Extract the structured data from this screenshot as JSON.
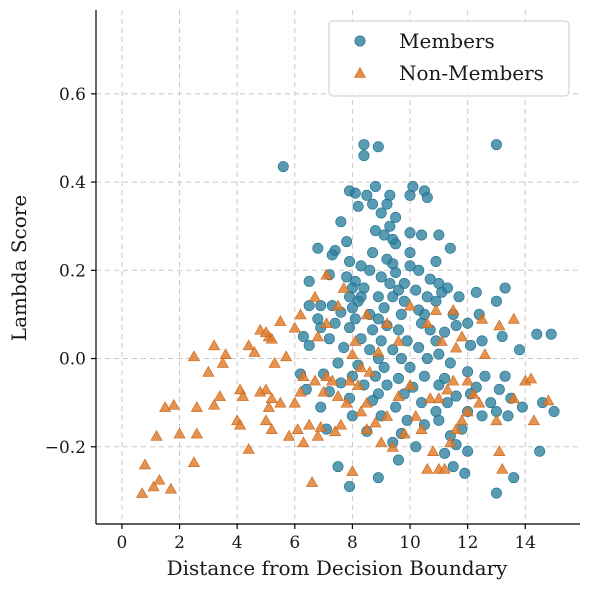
{
  "chart_data": {
    "type": "scatter",
    "xlabel": "Distance from Decision Boundary",
    "ylabel": "Lambda Score",
    "xlim": [
      -0.9,
      15.9
    ],
    "ylim": [
      -0.375,
      0.79
    ],
    "xticks": [
      0,
      2,
      4,
      6,
      8,
      10,
      12,
      14
    ],
    "yticks": [
      -0.2,
      0.0,
      0.2,
      0.4,
      0.6
    ],
    "ytick_labels": [
      "−0.2",
      "0.0",
      "0.2",
      "0.4",
      "0.6"
    ],
    "grid": true,
    "legend_position": "top-right",
    "series": [
      {
        "name": "Members",
        "color": "#2a7f9e",
        "marker": "circle",
        "points": [
          [
            5.6,
            0.435
          ],
          [
            8.4,
            0.485
          ],
          [
            8.9,
            0.48
          ],
          [
            13.0,
            0.485
          ],
          [
            8.4,
            0.46
          ],
          [
            8.8,
            0.39
          ],
          [
            10.1,
            0.39
          ],
          [
            10.5,
            0.38
          ],
          [
            7.9,
            0.38
          ],
          [
            8.1,
            0.375
          ],
          [
            8.5,
            0.37
          ],
          [
            9.3,
            0.37
          ],
          [
            10.0,
            0.37
          ],
          [
            10.6,
            0.365
          ],
          [
            8.7,
            0.35
          ],
          [
            9.2,
            0.35
          ],
          [
            8.2,
            0.345
          ],
          [
            9.0,
            0.33
          ],
          [
            9.5,
            0.32
          ],
          [
            7.6,
            0.31
          ],
          [
            9.3,
            0.3
          ],
          [
            8.8,
            0.29
          ],
          [
            10.0,
            0.285
          ],
          [
            9.1,
            0.28
          ],
          [
            10.4,
            0.28
          ],
          [
            9.4,
            0.27
          ],
          [
            11.0,
            0.28
          ],
          [
            7.8,
            0.265
          ],
          [
            9.5,
            0.26
          ],
          [
            6.8,
            0.25
          ],
          [
            7.4,
            0.245
          ],
          [
            10.0,
            0.24
          ],
          [
            8.7,
            0.24
          ],
          [
            7.3,
            0.235
          ],
          [
            11.4,
            0.25
          ],
          [
            9.2,
            0.225
          ],
          [
            7.9,
            0.22
          ],
          [
            8.3,
            0.21
          ],
          [
            9.4,
            0.215
          ],
          [
            10.0,
            0.21
          ],
          [
            10.9,
            0.22
          ],
          [
            8.6,
            0.2
          ],
          [
            9.5,
            0.195
          ],
          [
            10.3,
            0.2
          ],
          [
            7.2,
            0.19
          ],
          [
            7.8,
            0.185
          ],
          [
            9.0,
            0.185
          ],
          [
            10.7,
            0.18
          ],
          [
            6.5,
            0.175
          ],
          [
            8.1,
            0.175
          ],
          [
            9.3,
            0.17
          ],
          [
            9.8,
            0.17
          ],
          [
            11.0,
            0.17
          ],
          [
            8.0,
            0.16
          ],
          [
            8.4,
            0.16
          ],
          [
            9.6,
            0.155
          ],
          [
            10.2,
            0.155
          ],
          [
            11.3,
            0.16
          ],
          [
            11.1,
            0.15
          ],
          [
            12.3,
            0.15
          ],
          [
            13.3,
            0.16
          ],
          [
            7.9,
            0.14
          ],
          [
            8.3,
            0.14
          ],
          [
            8.9,
            0.14
          ],
          [
            9.4,
            0.14
          ],
          [
            10.6,
            0.14
          ],
          [
            11.7,
            0.14
          ],
          [
            8.2,
            0.13
          ],
          [
            9.8,
            0.13
          ],
          [
            10.9,
            0.13
          ],
          [
            7.3,
            0.12
          ],
          [
            6.9,
            0.12
          ],
          [
            8.0,
            0.115
          ],
          [
            9.1,
            0.115
          ],
          [
            10.3,
            0.11
          ],
          [
            11.5,
            0.1
          ],
          [
            12.4,
            0.1
          ],
          [
            6.5,
            0.12
          ],
          [
            7.6,
            0.105
          ],
          [
            8.6,
            0.1
          ],
          [
            9.7,
            0.1
          ],
          [
            10.5,
            0.1
          ],
          [
            12.0,
            0.08
          ],
          [
            13.0,
            0.13
          ],
          [
            6.8,
            0.09
          ],
          [
            8.1,
            0.09
          ],
          [
            8.9,
            0.09
          ],
          [
            7.4,
            0.08
          ],
          [
            9.2,
            0.075
          ],
          [
            10.4,
            0.08
          ],
          [
            11.6,
            0.075
          ],
          [
            6.9,
            0.07
          ],
          [
            7.9,
            0.07
          ],
          [
            8.7,
            0.065
          ],
          [
            9.6,
            0.065
          ],
          [
            10.7,
            0.065
          ],
          [
            11.2,
            0.06
          ],
          [
            13.2,
            0.05
          ],
          [
            6.3,
            0.05
          ],
          [
            7.2,
            0.045
          ],
          [
            8.3,
            0.045
          ],
          [
            9.0,
            0.04
          ],
          [
            9.9,
            0.04
          ],
          [
            10.9,
            0.04
          ],
          [
            12.5,
            0.04
          ],
          [
            14.4,
            0.055
          ],
          [
            14.9,
            0.055
          ],
          [
            6.5,
            0.03
          ],
          [
            7.7,
            0.025
          ],
          [
            8.6,
            0.02
          ],
          [
            9.4,
            0.02
          ],
          [
            10.3,
            0.025
          ],
          [
            11.0,
            0.01
          ],
          [
            12.1,
            0.03
          ],
          [
            13.8,
            0.02
          ],
          [
            8.9,
            0.0
          ],
          [
            9.7,
            0.0
          ],
          [
            10.6,
            0.0
          ],
          [
            7.5,
            -0.01
          ],
          [
            8.2,
            -0.015
          ],
          [
            9.1,
            -0.02
          ],
          [
            10.0,
            -0.02
          ],
          [
            11.4,
            -0.01
          ],
          [
            12.0,
            -0.03
          ],
          [
            6.2,
            -0.035
          ],
          [
            7.0,
            -0.035
          ],
          [
            8.0,
            -0.04
          ],
          [
            8.8,
            -0.04
          ],
          [
            9.6,
            -0.045
          ],
          [
            10.5,
            -0.04
          ],
          [
            11.2,
            -0.045
          ],
          [
            12.6,
            -0.04
          ],
          [
            13.3,
            -0.04
          ],
          [
            7.6,
            -0.055
          ],
          [
            8.4,
            -0.06
          ],
          [
            9.2,
            -0.06
          ],
          [
            10.1,
            -0.065
          ],
          [
            11.0,
            -0.06
          ],
          [
            12.3,
            -0.065
          ],
          [
            13.1,
            -0.07
          ],
          [
            6.4,
            -0.07
          ],
          [
            7.2,
            -0.075
          ],
          [
            8.9,
            -0.08
          ],
          [
            9.8,
            -0.08
          ],
          [
            11.6,
            -0.085
          ],
          [
            12.1,
            -0.08
          ],
          [
            13.5,
            -0.09
          ],
          [
            7.9,
            -0.09
          ],
          [
            8.7,
            -0.095
          ],
          [
            10.4,
            -0.1
          ],
          [
            11.3,
            -0.1
          ],
          [
            12.8,
            -0.1
          ],
          [
            13.9,
            -0.11
          ],
          [
            6.9,
            -0.11
          ],
          [
            9.5,
            -0.11
          ],
          [
            10.9,
            -0.12
          ],
          [
            12.0,
            -0.12
          ],
          [
            13.0,
            -0.12
          ],
          [
            14.6,
            -0.1
          ],
          [
            15.0,
            -0.12
          ],
          [
            8.0,
            -0.13
          ],
          [
            9.0,
            -0.13
          ],
          [
            9.9,
            -0.14
          ],
          [
            11.0,
            -0.14
          ],
          [
            12.5,
            -0.13
          ],
          [
            13.4,
            -0.13
          ],
          [
            10.5,
            -0.15
          ],
          [
            11.8,
            -0.16
          ],
          [
            7.1,
            -0.16
          ],
          [
            8.5,
            -0.165
          ],
          [
            9.7,
            -0.17
          ],
          [
            11.4,
            -0.175
          ],
          [
            9.4,
            -0.19
          ],
          [
            10.2,
            -0.2
          ],
          [
            11.6,
            -0.195
          ],
          [
            12.0,
            -0.21
          ],
          [
            14.5,
            -0.21
          ],
          [
            11.2,
            -0.215
          ],
          [
            9.6,
            -0.23
          ],
          [
            11.5,
            -0.245
          ],
          [
            11.9,
            -0.26
          ],
          [
            7.5,
            -0.245
          ],
          [
            8.9,
            -0.27
          ],
          [
            13.6,
            -0.27
          ],
          [
            7.9,
            -0.29
          ],
          [
            13.0,
            -0.305
          ]
        ]
      },
      {
        "name": "Non-Members",
        "color": "#e07b2a",
        "marker": "triangle",
        "points": [
          [
            0.7,
            -0.305
          ],
          [
            1.1,
            -0.29
          ],
          [
            1.7,
            -0.295
          ],
          [
            1.3,
            -0.275
          ],
          [
            0.8,
            -0.24
          ],
          [
            2.5,
            -0.235
          ],
          [
            1.2,
            -0.175
          ],
          [
            2.0,
            -0.17
          ],
          [
            4.4,
            -0.205
          ],
          [
            2.6,
            -0.17
          ],
          [
            1.5,
            -0.11
          ],
          [
            1.8,
            -0.105
          ],
          [
            2.6,
            -0.11
          ],
          [
            3.2,
            -0.105
          ],
          [
            3.4,
            -0.085
          ],
          [
            4.0,
            -0.14
          ],
          [
            4.1,
            -0.15
          ],
          [
            3.0,
            -0.03
          ],
          [
            3.5,
            -0.01
          ],
          [
            3.6,
            0.01
          ],
          [
            3.2,
            0.03
          ],
          [
            2.5,
            0.005
          ],
          [
            4.1,
            -0.07
          ],
          [
            4.2,
            -0.085
          ],
          [
            5.0,
            -0.07
          ],
          [
            5.2,
            -0.09
          ],
          [
            4.8,
            -0.075
          ],
          [
            5.1,
            -0.11
          ],
          [
            5.5,
            -0.1
          ],
          [
            5.0,
            -0.14
          ],
          [
            5.2,
            -0.16
          ],
          [
            5.8,
            -0.175
          ],
          [
            6.1,
            -0.16
          ],
          [
            6.3,
            -0.19
          ],
          [
            6.5,
            -0.15
          ],
          [
            6.8,
            -0.175
          ],
          [
            6.9,
            -0.155
          ],
          [
            7.4,
            -0.165
          ],
          [
            7.6,
            -0.15
          ],
          [
            6.6,
            -0.28
          ],
          [
            8.0,
            -0.255
          ],
          [
            4.4,
            0.03
          ],
          [
            4.6,
            0.015
          ],
          [
            5.1,
            0.05
          ],
          [
            5.3,
            -0.01
          ],
          [
            5.7,
            0.005
          ],
          [
            4.8,
            0.065
          ],
          [
            5.0,
            0.06
          ],
          [
            5.5,
            0.085
          ],
          [
            5.2,
            0.045
          ],
          [
            6.3,
            -0.04
          ],
          [
            6.0,
            -0.1
          ],
          [
            6.2,
            -0.075
          ],
          [
            6.7,
            -0.05
          ],
          [
            7.0,
            -0.075
          ],
          [
            7.1,
            -0.04
          ],
          [
            7.3,
            -0.05
          ],
          [
            7.5,
            -0.085
          ],
          [
            7.8,
            -0.1
          ],
          [
            7.9,
            -0.05
          ],
          [
            8.0,
            0.01
          ],
          [
            8.3,
            -0.02
          ],
          [
            8.6,
            -0.03
          ],
          [
            8.2,
            -0.06
          ],
          [
            8.5,
            -0.1
          ],
          [
            8.3,
            -0.12
          ],
          [
            8.5,
            -0.16
          ],
          [
            8.8,
            -0.145
          ],
          [
            9.0,
            -0.19
          ],
          [
            9.2,
            -0.13
          ],
          [
            9.4,
            -0.2
          ],
          [
            9.6,
            -0.085
          ],
          [
            9.8,
            -0.17
          ],
          [
            10.0,
            -0.06
          ],
          [
            10.2,
            -0.13
          ],
          [
            10.4,
            -0.16
          ],
          [
            10.6,
            -0.25
          ],
          [
            10.8,
            -0.21
          ],
          [
            11.0,
            -0.25
          ],
          [
            11.2,
            -0.25
          ],
          [
            11.4,
            -0.19
          ],
          [
            11.6,
            -0.16
          ],
          [
            11.8,
            -0.14
          ],
          [
            10.7,
            -0.09
          ],
          [
            11.0,
            -0.09
          ],
          [
            11.3,
            -0.07
          ],
          [
            11.5,
            -0.05
          ],
          [
            12.0,
            -0.12
          ],
          [
            12.4,
            -0.1
          ],
          [
            12.2,
            -0.08
          ],
          [
            12.6,
            0.01
          ],
          [
            13.0,
            -0.14
          ],
          [
            13.1,
            -0.21
          ],
          [
            13.2,
            -0.25
          ],
          [
            13.6,
            -0.09
          ],
          [
            14.0,
            -0.05
          ],
          [
            14.2,
            -0.045
          ],
          [
            14.3,
            -0.14
          ],
          [
            14.8,
            -0.095
          ],
          [
            11.1,
            0.04
          ],
          [
            11.8,
            0.05
          ],
          [
            12.0,
            -0.05
          ],
          [
            12.5,
            0.09
          ],
          [
            13.1,
            0.075
          ],
          [
            13.6,
            0.09
          ],
          [
            6.8,
            0.05
          ],
          [
            7.1,
            0.08
          ],
          [
            7.7,
            0.16
          ],
          [
            6.2,
            0.1
          ],
          [
            6.0,
            0.07
          ],
          [
            7.1,
            0.19
          ],
          [
            6.7,
            0.14
          ],
          [
            8.5,
            0.1
          ],
          [
            9.2,
            0.08
          ],
          [
            10.0,
            0.12
          ],
          [
            10.6,
            0.08
          ],
          [
            9.6,
            0.04
          ],
          [
            8.9,
            0.015
          ],
          [
            10.9,
            0.11
          ],
          [
            11.6,
            0.025
          ],
          [
            8.1,
            0.04
          ],
          [
            7.5,
            0.12
          ],
          [
            11.5,
            0.11
          ]
        ]
      }
    ]
  }
}
